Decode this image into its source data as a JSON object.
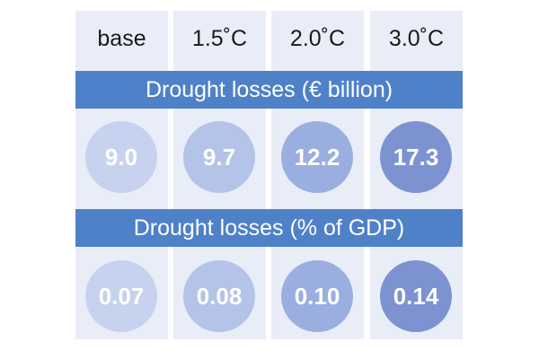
{
  "chart_data": {
    "type": "table",
    "columns": [
      "base",
      "1.5˚C",
      "2.0˚C",
      "3.0˚C"
    ],
    "rows": [
      {
        "title": "Drought losses (€ billion)",
        "values": [
          "9.0",
          "9.7",
          "12.2",
          "17.3"
        ]
      },
      {
        "title": "Drought losses (% of GDP)",
        "values": [
          "0.07",
          "0.08",
          "0.10",
          "0.14"
        ]
      }
    ]
  },
  "colors": {
    "band": "#4f81c8",
    "column_bg": "#e9edf8",
    "circle_shades": [
      "#c7d2ee",
      "#b4c3e8",
      "#9aaee0",
      "#7d93d1"
    ]
  }
}
